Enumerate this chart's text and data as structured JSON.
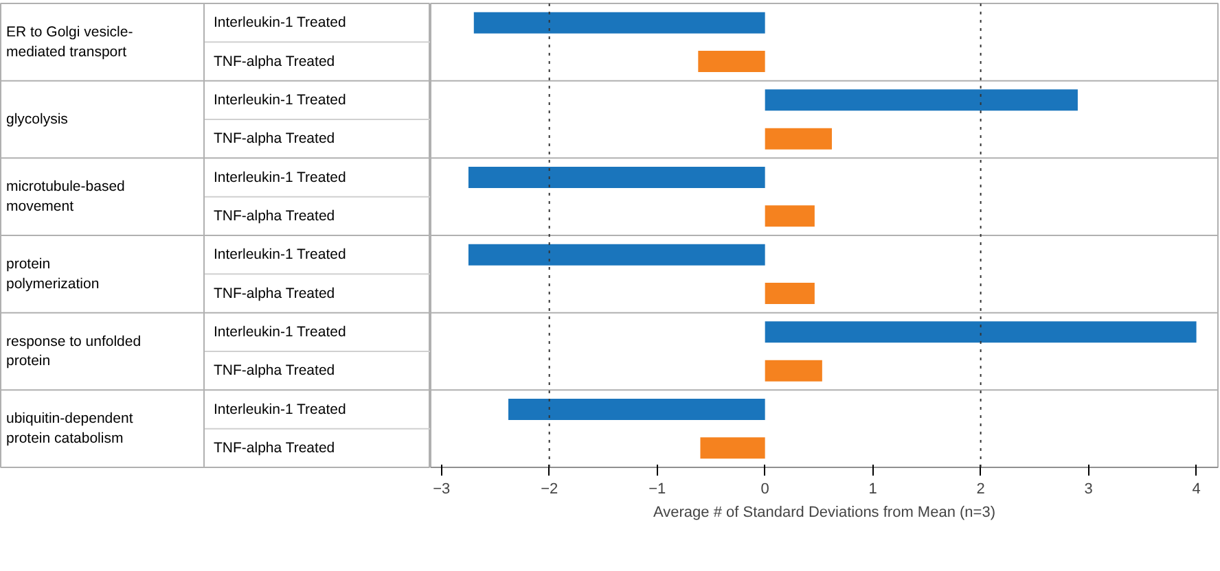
{
  "chart_data": {
    "type": "bar",
    "orientation": "horizontal",
    "xlabel": "Average # of Standard Deviations from Mean (n=3)",
    "categories": [
      "Interleukin-1 Treated",
      "TNF-alpha Treated",
      "Interleukin-1 Treated",
      "TNF-alpha Treated",
      "Interleukin-1 Treated",
      "TNF-alpha Treated",
      "Interleukin-1 Treated",
      "TNF-alpha Treated",
      "Interleukin-1 Treated",
      "TNF-alpha Treated",
      "Interleukin-1 Treated",
      "TNF-alpha Treated"
    ],
    "values": [
      -2.7,
      -0.62,
      2.9,
      0.62,
      -2.75,
      0.46,
      -2.75,
      0.46,
      4.0,
      0.53,
      -2.38,
      -0.6
    ],
    "colors": [
      "#1a75bc",
      "#f5821f",
      "#1a75bc",
      "#f5821f",
      "#1a75bc",
      "#f5821f",
      "#1a75bc",
      "#f5821f",
      "#1a75bc",
      "#f5821f",
      "#1a75bc",
      "#f5821f"
    ],
    "annotations": [
      "ER to Golgi vesicle-mediated transport",
      "glycolysis",
      "microtubule-based movement",
      "protein polymerization",
      "response to unfolded protein",
      "ubiquitin-dependent protein catabolism"
    ],
    "xlim": [
      -3.1,
      4.2
    ],
    "xticks": [
      -3,
      -2,
      -1,
      0,
      1,
      2,
      3,
      4
    ],
    "ref_lines": [
      {
        "axis": "x",
        "value": -2,
        "line_style": "dotted"
      },
      {
        "axis": "x",
        "value": 2,
        "line_style": "dotted"
      }
    ],
    "grid": false
  }
}
